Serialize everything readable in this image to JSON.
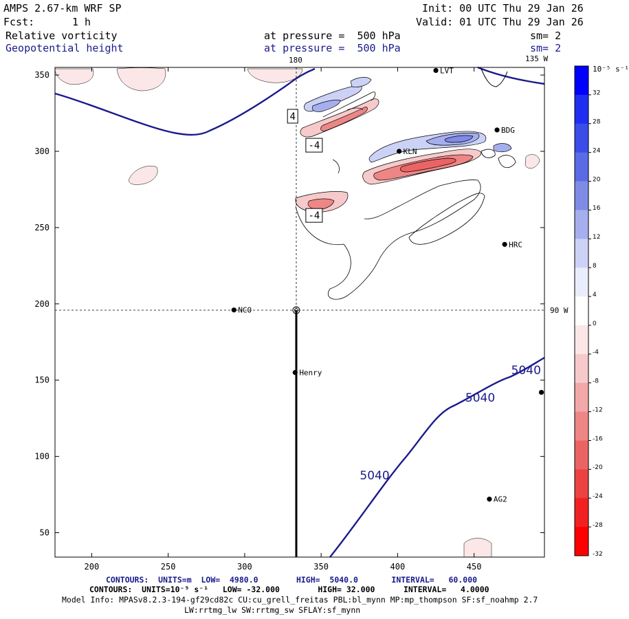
{
  "header": {
    "model": "AMPS 2.67-km WRF SP",
    "fcst_label": "Fcst:",
    "fcst_value": "1 h",
    "init": "Init: 00 UTC Thu 29 Jan 26",
    "valid": "Valid: 01 UTC Thu 29 Jan 26",
    "field1_name": "Relative vorticity",
    "field1_level": "at pressure =  500 hPa",
    "field1_smooth": "sm= 2",
    "field2_name": "Geopotential height",
    "field2_level": "at pressure =  500 hPa",
    "field2_smooth": "sm= 2",
    "meridian_180": "180",
    "meridian_135w": "135 W",
    "meridian_90w": "90 W"
  },
  "footer": {
    "line1": "CONTOURS:  UNITS=m  LOW=  4980.0        HIGH=  5040.0       INTERVAL=   60.000",
    "line2": "CONTOURS:  UNITS=10⁻⁵ s⁻¹   LOW= -32.000        HIGH= 32.000      INTERVAL=   4.0000",
    "line3": "Model Info: MPASv8.2.3-194-gf29cd82c CU:cu_grell_freitas PBL:bl_mynn MP:mp_thompson SF:sf_noahmp 2.7",
    "line4": "LW:rrtmg_lw SW:rrtmg_sw SFLAY:sf_mynn"
  },
  "colorbar": {
    "unit_label": "10⁻⁵ s⁻¹",
    "ticks": [
      "32",
      "28",
      "24",
      "20",
      "16",
      "12",
      "8",
      "4",
      "0",
      "-4",
      "-8",
      "-12",
      "-16",
      "-20",
      "-24",
      "-28",
      "-32"
    ],
    "colors": [
      "#0000ff",
      "#1f2ff2",
      "#3a4de8",
      "#5a6be4",
      "#7f8ce6",
      "#a6afee",
      "#ccd2f6",
      "#eaeefc",
      "#ffffff",
      "#fbe7e7",
      "#f6caca",
      "#f2a8a8",
      "#ee8686",
      "#eb6464",
      "#ec4242",
      "#f12121",
      "#ff0000"
    ]
  },
  "chart_data": {
    "type": "contour-map",
    "title": "Relative vorticity / Geopotential height at 500 hPa",
    "x_ticks": [
      "200",
      "250",
      "300",
      "350",
      "400",
      "450"
    ],
    "y_ticks": [
      "350",
      "300",
      "250",
      "200",
      "150",
      "100",
      "50"
    ],
    "xlim": [
      176,
      496
    ],
    "ylim": [
      34,
      355
    ],
    "crosshair": {
      "x": 333,
      "y": 196
    },
    "stations": [
      {
        "name": "LVT",
        "x": 425,
        "y": 353
      },
      {
        "name": "BDG",
        "x": 465,
        "y": 314
      },
      {
        "name": "KLN",
        "x": 401,
        "y": 300
      },
      {
        "name": "HRC",
        "x": 470,
        "y": 239
      },
      {
        "name": "NCO",
        "x": 293,
        "y": 196
      },
      {
        "name": "Henry",
        "x": 333,
        "y": 155
      },
      {
        "name": "AG2",
        "x": 460,
        "y": 72
      },
      {
        "name": "",
        "x": 494,
        "y": 142
      }
    ],
    "height_contours": [
      {
        "label": "5040",
        "x": 454,
        "y": 136
      },
      {
        "label": "5040",
        "x": 385,
        "y": 85
      },
      {
        "label": "5040",
        "x": 484,
        "y": 154
      }
    ],
    "vorticity_labels": [
      {
        "label": "4",
        "x": 328,
        "y": 323
      },
      {
        "label": "-4",
        "x": 340,
        "y": 304
      },
      {
        "label": "-4",
        "x": 340,
        "y": 258
      }
    ]
  }
}
